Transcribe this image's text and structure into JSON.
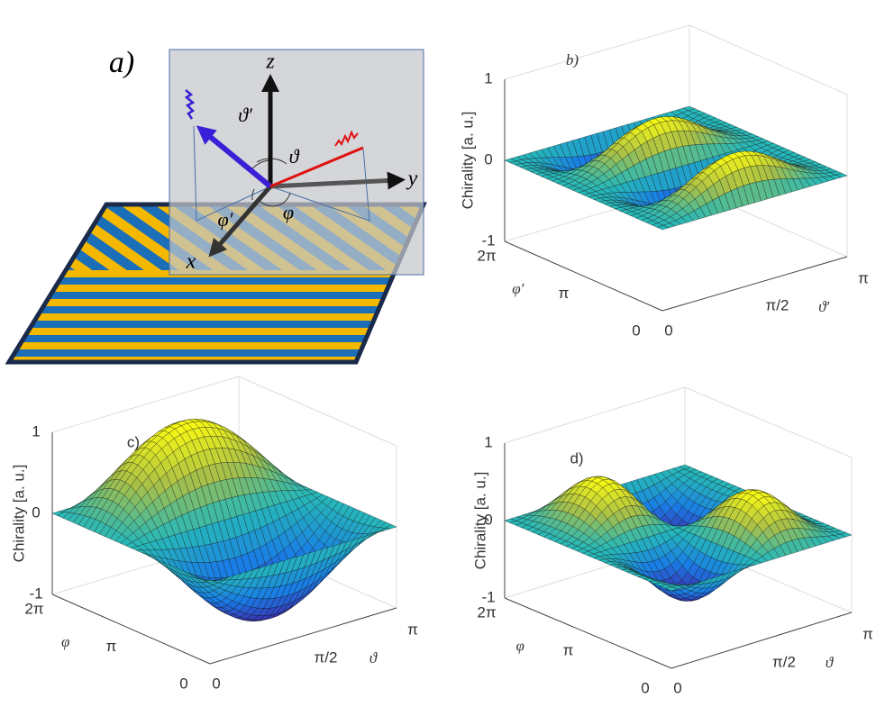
{
  "panels": {
    "a": {
      "label": "a)",
      "x": "x",
      "y": "y",
      "z": "z",
      "theta_prime": "ϑ′",
      "theta": "ϑ",
      "phi_prime": "φ′",
      "phi": "φ"
    },
    "b": {
      "label": "b)",
      "z_label": "Chirality [a. u.]",
      "z_ticks": [
        "1",
        "0",
        "-1"
      ],
      "phi_label": "φ′",
      "phi_ticks": [
        "2π",
        "π",
        "0"
      ],
      "theta_label": "ϑ′",
      "theta_ticks": [
        "0",
        "π/2",
        "π"
      ]
    },
    "c": {
      "label": "c)",
      "z_label": "Chirality [a. u.]",
      "z_ticks": [
        "1",
        "0",
        "-1"
      ],
      "phi_label": "φ",
      "phi_ticks": [
        "2π",
        "π",
        "0"
      ],
      "theta_label": "ϑ",
      "theta_ticks": [
        "0",
        "π/2",
        "π"
      ]
    },
    "d": {
      "label": "d)",
      "z_label": "Chirality [a. u.]",
      "z_ticks": [
        "1",
        "0",
        "-1"
      ],
      "phi_label": "φ",
      "phi_ticks": [
        "2π",
        "π",
        "0"
      ],
      "theta_label": "ϑ",
      "theta_ticks": [
        "0",
        "π/2",
        "π"
      ]
    }
  }
}
